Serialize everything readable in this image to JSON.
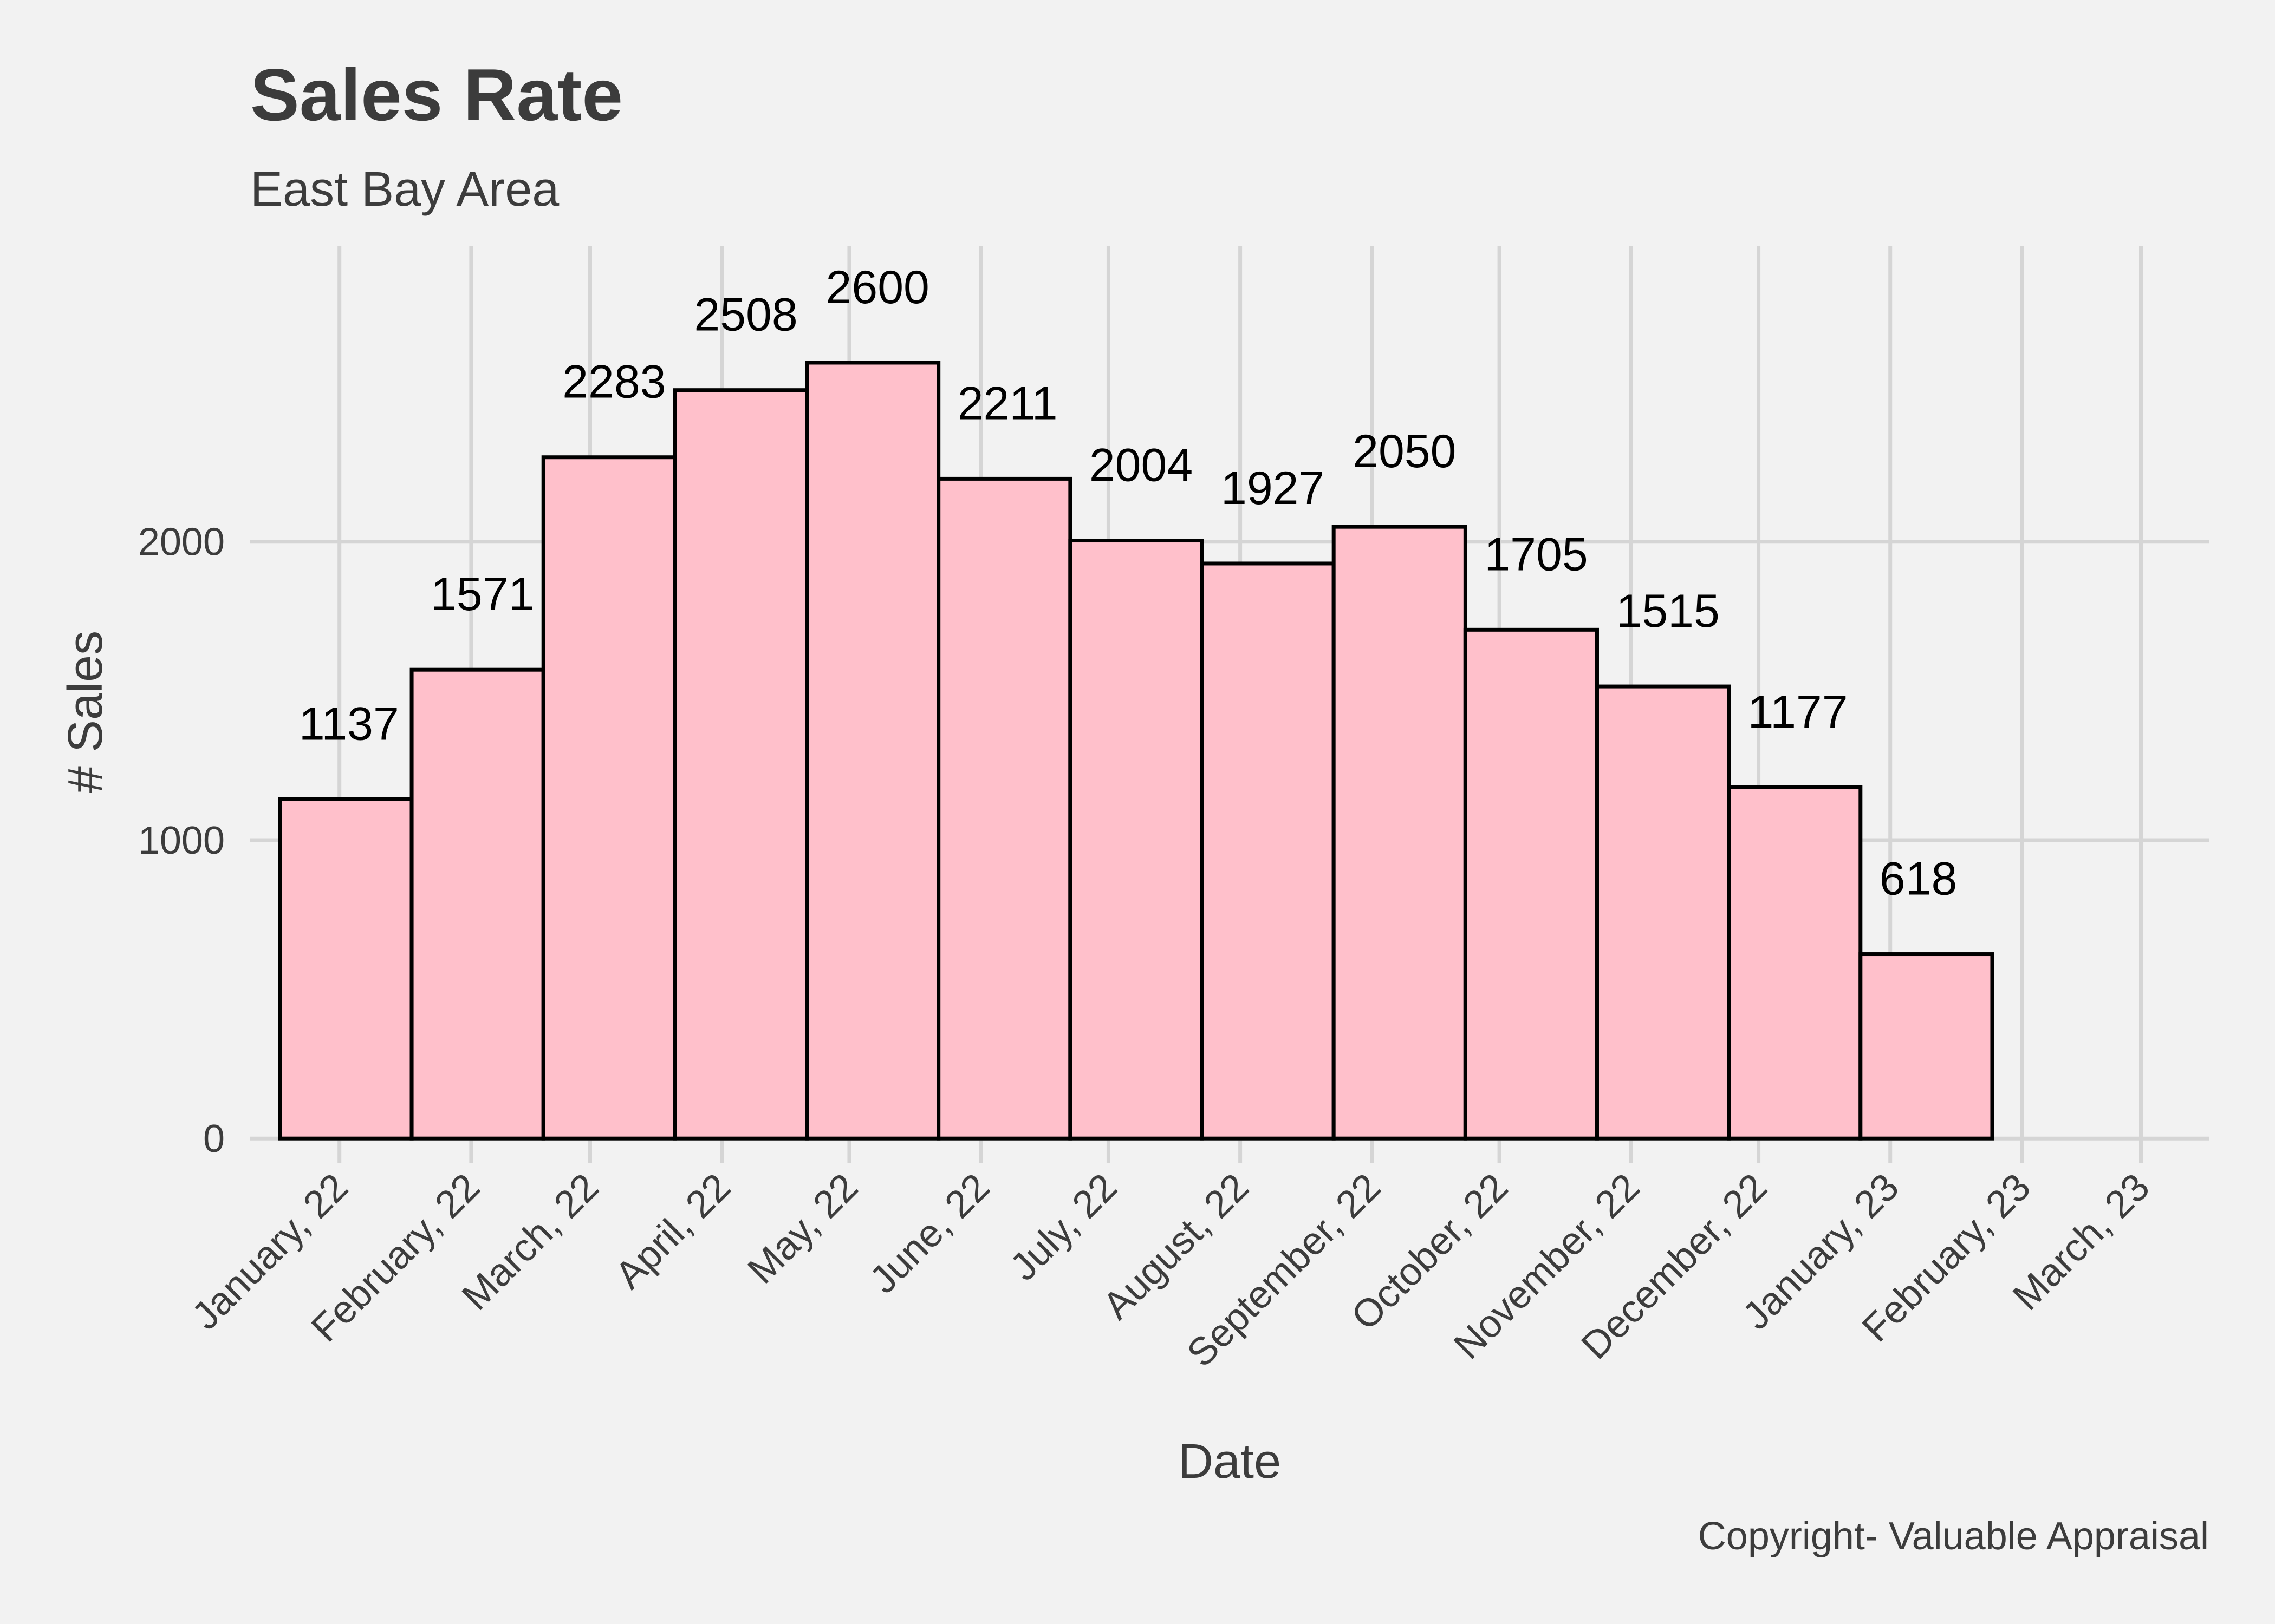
{
  "chart_data": {
    "type": "bar",
    "title": "Sales Rate",
    "subtitle": "East Bay Area",
    "caption": "Copyright- Valuable Appraisal",
    "xlabel": "Date",
    "ylabel": "# Sales",
    "x_ticks": [
      "2022-01-01",
      "2022-02-01",
      "2022-03-01",
      "2022-04-01",
      "2022-05-01",
      "2022-06-01",
      "2022-07-01",
      "2022-08-01",
      "2022-09-01",
      "2022-10-01",
      "2022-11-01",
      "2022-12-01",
      "2023-01-01",
      "2023-02-01",
      "2023-03-01"
    ],
    "x_tick_labels": [
      "January, 22",
      "February, 22",
      "March, 22",
      "April, 22",
      "May, 22",
      "June, 22",
      "July, 22",
      "August, 22",
      "September, 22",
      "October, 22",
      "November, 22",
      "December, 22",
      "January, 23",
      "February, 23",
      "March, 23"
    ],
    "xlim": [
      "2021-12-11",
      "2023-03-17"
    ],
    "bars": [
      {
        "start": "2021-12-18",
        "end": "2022-01-18",
        "value": 1137
      },
      {
        "start": "2022-01-18",
        "end": "2022-02-18",
        "value": 1571
      },
      {
        "start": "2022-02-18",
        "end": "2022-03-21",
        "value": 2283
      },
      {
        "start": "2022-03-21",
        "end": "2022-04-21",
        "value": 2508
      },
      {
        "start": "2022-04-21",
        "end": "2022-05-22",
        "value": 2600
      },
      {
        "start": "2022-05-22",
        "end": "2022-06-22",
        "value": 2211
      },
      {
        "start": "2022-06-22",
        "end": "2022-07-23",
        "value": 2004
      },
      {
        "start": "2022-07-23",
        "end": "2022-08-23",
        "value": 1927
      },
      {
        "start": "2022-08-23",
        "end": "2022-09-23",
        "value": 2050
      },
      {
        "start": "2022-09-23",
        "end": "2022-10-24",
        "value": 1705
      },
      {
        "start": "2022-10-24",
        "end": "2022-11-24",
        "value": 1515
      },
      {
        "start": "2022-11-24",
        "end": "2022-12-25",
        "value": 1177
      },
      {
        "start": "2022-12-25",
        "end": "2023-01-25",
        "value": 618
      }
    ],
    "ylim": [
      -45,
      2990
    ],
    "y_ticks": [
      0,
      1000,
      2000
    ],
    "grid": true,
    "bar_color": "#FFC0CB",
    "bar_border_color": "#000000",
    "background_color": "#F2F2F2",
    "gridline_color": "#D5D5D5"
  }
}
